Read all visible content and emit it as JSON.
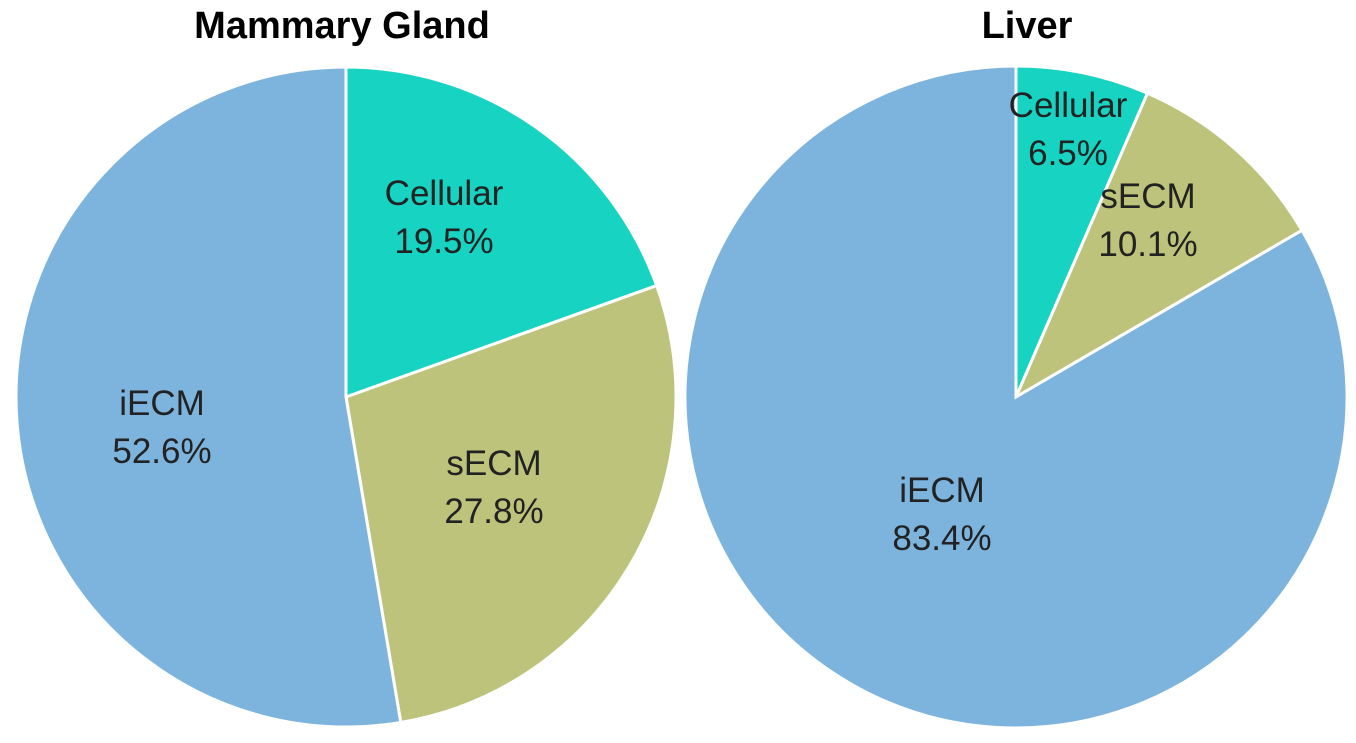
{
  "chart_data": [
    {
      "type": "pie",
      "title": "Mammary Gland",
      "start": "12 o'clock",
      "direction": "clockwise",
      "slices": [
        {
          "name": "Cellular",
          "value": 19.5,
          "label": "19.5%",
          "color": "#17d3c1"
        },
        {
          "name": "sECM",
          "value": 27.8,
          "label": "27.8%",
          "color": "#bdc37b"
        },
        {
          "name": "iECM",
          "value": 52.6,
          "label": "52.6%",
          "color": "#7db4dd"
        }
      ]
    },
    {
      "type": "pie",
      "title": "Liver",
      "start": "12 o'clock",
      "direction": "clockwise",
      "slices": [
        {
          "name": "Cellular",
          "value": 6.5,
          "label": "6.5%",
          "color": "#17d3c1"
        },
        {
          "name": "sECM",
          "value": 10.1,
          "label": "10.1%",
          "color": "#bdc37b"
        },
        {
          "name": "iECM",
          "value": 83.4,
          "label": "83.4%",
          "color": "#7db4dd"
        }
      ]
    }
  ]
}
